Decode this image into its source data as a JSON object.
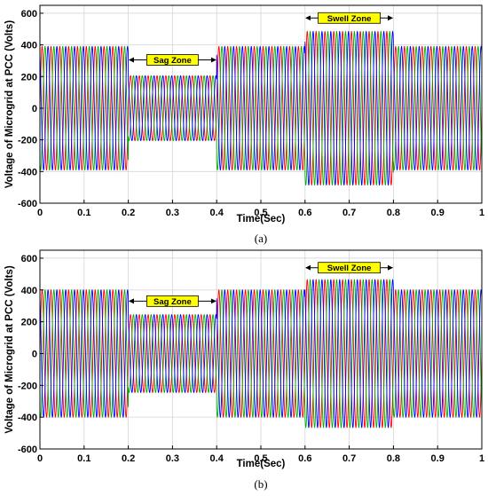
{
  "chart_data": [
    {
      "type": "line",
      "caption": "(a)",
      "xlabel": "Time(Sec)",
      "ylabel": "Voltage of Microgrid at PCC (Volts)",
      "xlim": [
        0,
        1
      ],
      "ylim": [
        -600,
        650
      ],
      "xticks": [
        "0",
        "0.1",
        "0.2",
        "0.3",
        "0.4",
        "0.5",
        "0.6",
        "0.7",
        "0.8",
        "0.9",
        "1"
      ],
      "yticks": [
        "-600",
        "-400",
        "-200",
        "0",
        "200",
        "400",
        "600"
      ],
      "grid": true,
      "waveform": {
        "phases": 3,
        "phase_colors": [
          "#ff0000",
          "#00b000",
          "#0000ff"
        ],
        "frequency_hz": 50,
        "segments": [
          {
            "t_start": 0.0,
            "t_end": 0.2,
            "amplitude": 390
          },
          {
            "t_start": 0.2,
            "t_end": 0.4,
            "amplitude": 205
          },
          {
            "t_start": 0.4,
            "t_end": 0.6,
            "amplitude": 390
          },
          {
            "t_start": 0.6,
            "t_end": 0.8,
            "amplitude": 485
          },
          {
            "t_start": 0.8,
            "t_end": 1.0,
            "amplitude": 390
          }
        ]
      },
      "annotations": [
        {
          "label": "Sag Zone",
          "x_start": 0.2,
          "x_end": 0.4,
          "y": 305
        },
        {
          "label": "Swell Zone",
          "x_start": 0.6,
          "x_end": 0.8,
          "y": 570
        }
      ]
    },
    {
      "type": "line",
      "caption": "(b)",
      "xlabel": "Time(Sec)",
      "ylabel": "Voltage of Microgrid at PCC (Volts)",
      "xlim": [
        0,
        1
      ],
      "ylim": [
        -600,
        650
      ],
      "xticks": [
        "0",
        "0.1",
        "0.2",
        "0.3",
        "0.4",
        "0.5",
        "0.6",
        "0.7",
        "0.8",
        "0.9",
        "1"
      ],
      "yticks": [
        "-600",
        "-400",
        "-200",
        "0",
        "200",
        "400",
        "600"
      ],
      "grid": true,
      "waveform": {
        "phases": 3,
        "phase_colors": [
          "#ff0000",
          "#00b000",
          "#0000ff"
        ],
        "frequency_hz": 50,
        "segments": [
          {
            "t_start": 0.0,
            "t_end": 0.2,
            "amplitude": 400
          },
          {
            "t_start": 0.2,
            "t_end": 0.4,
            "amplitude": 245
          },
          {
            "t_start": 0.4,
            "t_end": 0.6,
            "amplitude": 400
          },
          {
            "t_start": 0.6,
            "t_end": 0.8,
            "amplitude": 465
          },
          {
            "t_start": 0.8,
            "t_end": 1.0,
            "amplitude": 400
          }
        ]
      },
      "annotations": [
        {
          "label": "Sag Zone",
          "x_start": 0.2,
          "x_end": 0.4,
          "y": 330
        },
        {
          "label": "Swell Zone",
          "x_start": 0.6,
          "x_end": 0.8,
          "y": 540
        }
      ]
    }
  ],
  "colors": {
    "zone_label_fill": "#ffff00",
    "grid": "#d6d6d6",
    "axes": "#000000"
  }
}
